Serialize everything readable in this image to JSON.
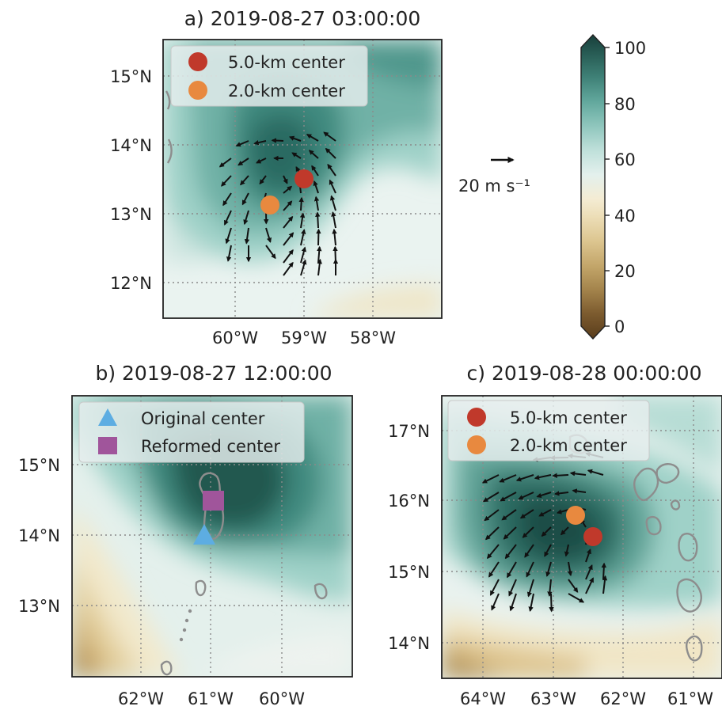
{
  "colorbar": {
    "ticks": [
      "100",
      "80",
      "60",
      "40",
      "20",
      "0"
    ],
    "min": 0,
    "max": 100,
    "colors_low_to_high": [
      "#5a3d1c",
      "#7b5a2e",
      "#9b7b45",
      "#b9995c",
      "#cfb478",
      "#e1cc97",
      "#ecddb6",
      "#f4ecd3",
      "#eef3f1",
      "#d7ebe7",
      "#bfe0da",
      "#a4d3cb",
      "#88c2b9",
      "#6dafa4",
      "#569a8f",
      "#41847a",
      "#306c63",
      "#21564f",
      "#183f3b"
    ]
  },
  "scale_arrow": {
    "label": "20 m s⁻¹",
    "value_ms": 20
  },
  "panels": {
    "a": {
      "title": "a) 2019-08-27 03:00:00",
      "lat_ticks": [
        "15°N",
        "14°N",
        "13°N",
        "12°N"
      ],
      "lon_ticks": [
        "60°W",
        "59°W",
        "58°W"
      ],
      "legend": [
        {
          "label": "5.0-km center",
          "color": "#c0392b",
          "marker": "circle"
        },
        {
          "label": "2.0-km center",
          "color": "#e8893f",
          "marker": "circle"
        }
      ]
    },
    "b": {
      "title": "b) 2019-08-27 12:00:00",
      "lat_ticks": [
        "15°N",
        "14°N",
        "13°N"
      ],
      "lon_ticks": [
        "62°W",
        "61°W",
        "60°W"
      ],
      "legend": [
        {
          "label": "Original center",
          "color": "#5dade2",
          "marker": "triangle"
        },
        {
          "label": "Reformed center",
          "color": "#a0559b",
          "marker": "square"
        }
      ]
    },
    "c": {
      "title": "c) 2019-08-28 00:00:00",
      "lat_ticks": [
        "17°N",
        "16°N",
        "15°N",
        "14°N"
      ],
      "lon_ticks": [
        "64°W",
        "63°W",
        "62°W",
        "61°W"
      ],
      "legend": [
        {
          "label": "5.0-km center",
          "color": "#c0392b",
          "marker": "circle"
        },
        {
          "label": "2.0-km center",
          "color": "#e8893f",
          "marker": "circle"
        }
      ]
    }
  }
}
